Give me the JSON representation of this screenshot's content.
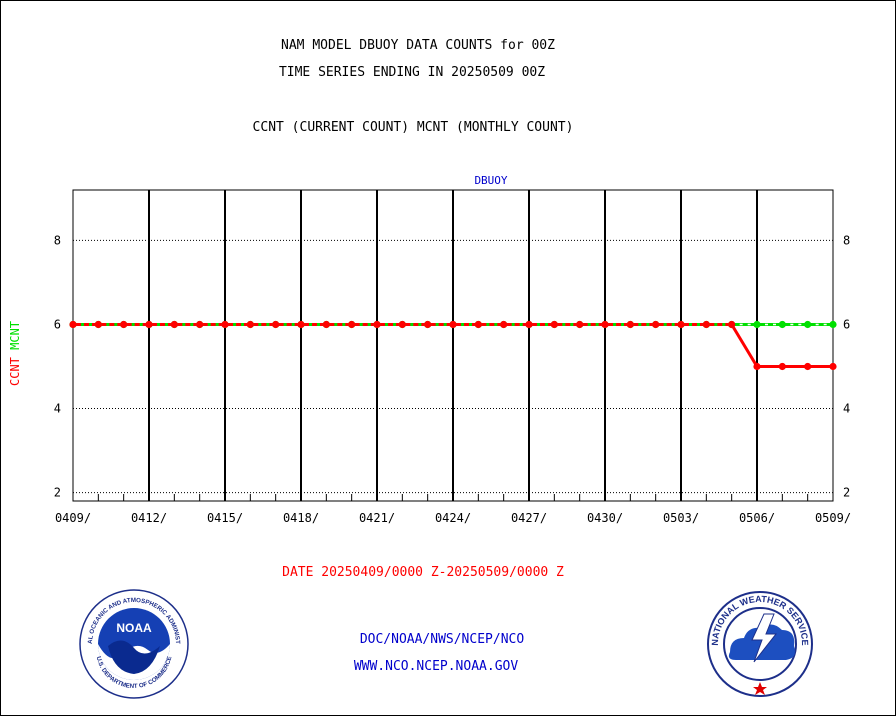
{
  "header": {
    "title": "NAM MODEL DBUOY DATA COUNTS for 00Z",
    "subtitle": "TIME SERIES ENDING IN 20250509 00Z",
    "description": "CCNT (CURRENT COUNT) MCNT (MONTHLY COUNT)"
  },
  "chart_data": {
    "type": "line",
    "title": "DBUOY",
    "xlabel": "DATE 20250409/0000 Z-20250509/0000 Z",
    "ylabel_series": [
      {
        "text": "CCNT",
        "color": "#ff0000"
      },
      {
        "text": "MCNT",
        "color": "#00e000"
      }
    ],
    "x_tick_labels": [
      "0409/",
      "0412/",
      "0415/",
      "0418/",
      "0421/",
      "0424/",
      "0427/",
      "0430/",
      "0503/",
      "0506/",
      "0509/"
    ],
    "y_ticks": [
      2,
      4,
      6,
      8
    ],
    "ylim": [
      1.8,
      9.2
    ],
    "grid": true,
    "x_dates": [
      "20250409",
      "20250410",
      "20250411",
      "20250412",
      "20250413",
      "20250414",
      "20250415",
      "20250416",
      "20250417",
      "20250418",
      "20250419",
      "20250420",
      "20250421",
      "20250422",
      "20250423",
      "20250424",
      "20250425",
      "20250426",
      "20250427",
      "20250428",
      "20250429",
      "20250430",
      "20250501",
      "20250502",
      "20250503",
      "20250504",
      "20250505",
      "20250506",
      "20250507",
      "20250508",
      "20250509"
    ],
    "series": [
      {
        "name": "CCNT",
        "color": "#ff0000",
        "values": [
          6,
          6,
          6,
          6,
          6,
          6,
          6,
          6,
          6,
          6,
          6,
          6,
          6,
          6,
          6,
          6,
          6,
          6,
          6,
          6,
          6,
          6,
          6,
          6,
          6,
          6,
          6,
          5,
          5,
          5,
          5
        ]
      },
      {
        "name": "MCNT",
        "color": "#00e000",
        "values": [
          6,
          6,
          6,
          6,
          6,
          6,
          6,
          6,
          6,
          6,
          6,
          6,
          6,
          6,
          6,
          6,
          6,
          6,
          6,
          6,
          6,
          6,
          6,
          6,
          6,
          6,
          6,
          6,
          6,
          6,
          6
        ]
      }
    ]
  },
  "footer": {
    "line1": "DOC/NOAA/NWS/NCEP/NCO",
    "line2": "WWW.NCO.NCEP.NOAA.GOV",
    "noaa_logo_text": "NOAA",
    "noaa_ring_text": "NATIONAL OCEANIC AND ATMOSPHERIC ADMINISTRATION",
    "noaa_ring_text_bottom": "U.S. DEPARTMENT OF COMMERCE",
    "nws_ring_text": "NATIONAL WEATHER SERVICE",
    "footer_color": "#0000cc",
    "xlabel_color": "#ff0000"
  }
}
